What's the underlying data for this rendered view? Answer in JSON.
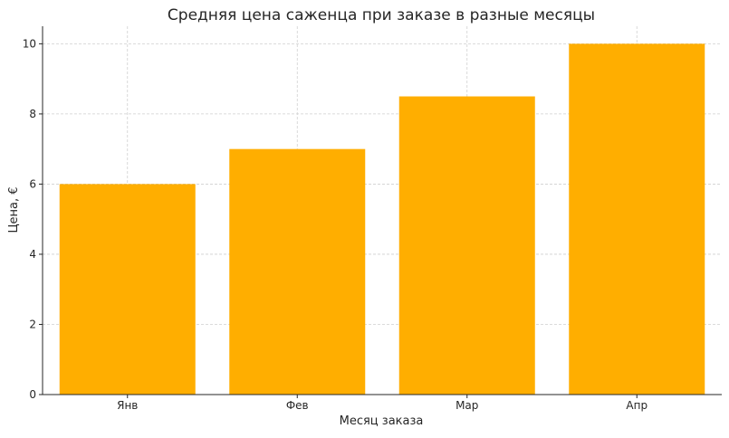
{
  "chart_data": {
    "type": "bar",
    "title": "Средняя цена саженца при заказе в разные месяцы",
    "xlabel": "Месяц заказа",
    "ylabel": "Цена, €",
    "categories": [
      "Янв",
      "Фев",
      "Мар",
      "Апр"
    ],
    "values": [
      6,
      7,
      8.5,
      10
    ],
    "ylim": [
      0,
      10.5
    ],
    "yticks": [
      0,
      2,
      4,
      6,
      8,
      10
    ],
    "grid": true,
    "bar_color": "#FFAE00"
  }
}
